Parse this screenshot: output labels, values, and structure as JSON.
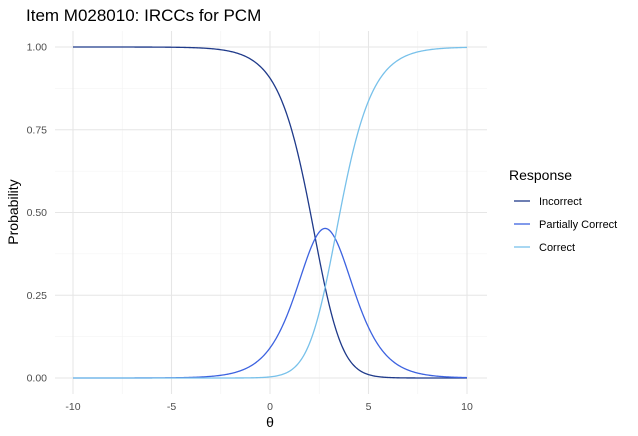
{
  "chart_data": {
    "type": "line",
    "title": "Item M028010: IRCCs for PCM",
    "xlabel": "θ",
    "ylabel": "Probability",
    "xlim": [
      -10,
      10
    ],
    "ylim": [
      0,
      1
    ],
    "x_ticks": [
      "-10",
      "-5",
      "0",
      "5",
      "10"
    ],
    "y_ticks": [
      "0.00",
      "0.25",
      "0.50",
      "0.75",
      "1.00"
    ],
    "grid": true,
    "legend": {
      "title": "Response",
      "placement": "right"
    },
    "model": {
      "type": "PCM",
      "step_thresholds": [
        2.3,
        3.3
      ]
    },
    "series": [
      {
        "name": "Incorrect",
        "color": "#1f3a8a",
        "x": [
          -10,
          -8,
          -6,
          -4,
          -2,
          -1,
          0,
          1,
          2,
          2.5,
          3,
          3.5,
          4,
          5,
          6,
          8,
          10
        ],
        "values": [
          1.0,
          1.0,
          1.0,
          0.998,
          0.986,
          0.962,
          0.9,
          0.765,
          0.545,
          0.41,
          0.29,
          0.195,
          0.125,
          0.047,
          0.017,
          0.002,
          0.0
        ]
      },
      {
        "name": "Partially Correct",
        "color": "#3d63e0",
        "x": [
          -10,
          -8,
          -6,
          -4,
          -2,
          -1,
          0,
          1,
          2,
          2.5,
          3,
          3.5,
          4,
          5,
          6,
          8,
          10
        ],
        "values": [
          0.0,
          0.0,
          0.0,
          0.002,
          0.013,
          0.036,
          0.092,
          0.208,
          0.373,
          0.43,
          0.448,
          0.41,
          0.34,
          0.19,
          0.086,
          0.013,
          0.002
        ]
      },
      {
        "name": "Correct",
        "color": "#78c1ea",
        "x": [
          -10,
          -8,
          -6,
          -4,
          -2,
          -1,
          0,
          1,
          2,
          2.5,
          3,
          3.5,
          4,
          5,
          6,
          8,
          10
        ],
        "values": [
          0.0,
          0.0,
          0.0,
          0.0,
          0.0,
          0.001,
          0.003,
          0.02,
          0.082,
          0.16,
          0.262,
          0.395,
          0.535,
          0.763,
          0.897,
          0.985,
          0.998
        ]
      }
    ]
  }
}
